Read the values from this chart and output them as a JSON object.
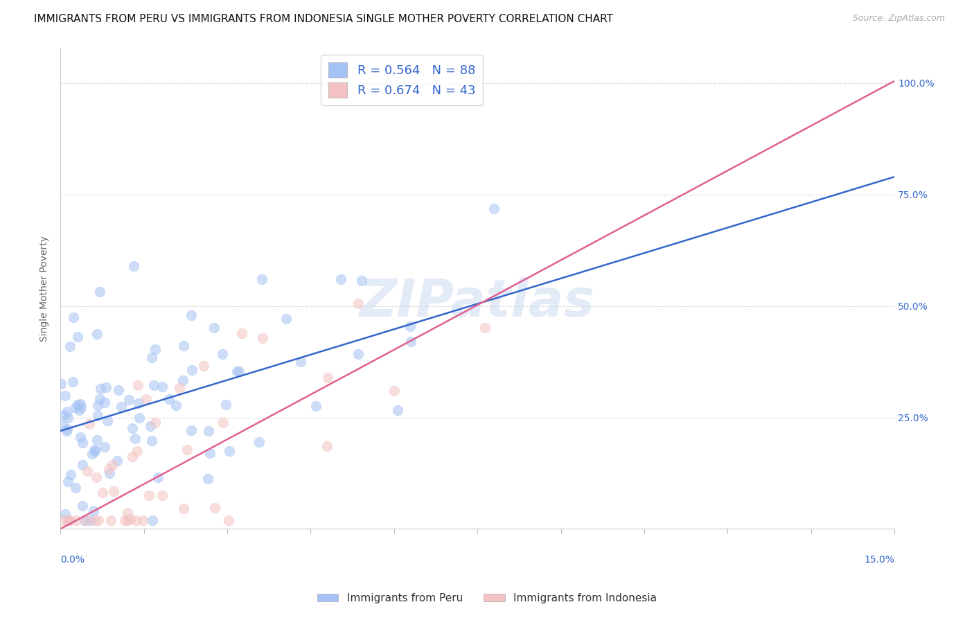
{
  "title": "IMMIGRANTS FROM PERU VS IMMIGRANTS FROM INDONESIA SINGLE MOTHER POVERTY CORRELATION CHART",
  "source": "Source: ZipAtlas.com",
  "ylabel": "Single Mother Poverty",
  "legend_peru": "R = 0.564   N = 88",
  "legend_indo": "R = 0.674   N = 43",
  "watermark": "ZIPatlas",
  "blue_scatter_color": "#a4c2f4",
  "pink_scatter_color": "#f4c2c2",
  "blue_line_color": "#3366cc",
  "pink_line_color": "#e06090",
  "label_color": "#3366cc",
  "grid_color": "#dddddd",
  "watermark_color": "#c8d8f0",
  "watermark_alpha": 0.5,
  "xlim": [
    0.0,
    0.15
  ],
  "ylim": [
    0.0,
    1.08
  ],
  "dot_size": 110,
  "dot_alpha": 0.55,
  "title_fontsize": 11,
  "axis_label_fontsize": 10,
  "tick_fontsize": 10,
  "legend_fontsize": 13,
  "source_fontsize": 9,
  "blue_slope": 3.8,
  "blue_intercept": 0.22,
  "pink_slope": 6.7,
  "pink_intercept": 0.0,
  "peru_n": 88,
  "indo_n": 43,
  "right_yticklabels": [
    "",
    "25.0%",
    "50.0%",
    "75.0%",
    "100.0%"
  ]
}
